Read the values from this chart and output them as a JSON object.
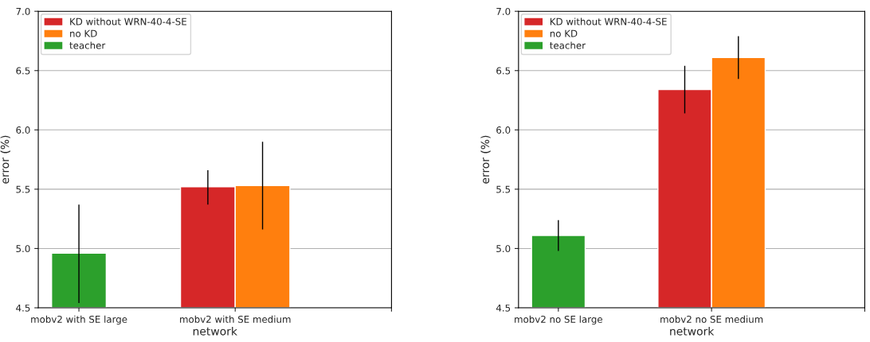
{
  "chart_data": [
    {
      "type": "bar",
      "xlabel": "network",
      "ylabel": "error (%)",
      "categories": [
        "mobv2 with SE large",
        "mobv2 with SE medium",
        null
      ],
      "ylim": [
        4.5,
        7.0
      ],
      "yticks": [
        {
          "value": 4.5,
          "label": "4.5"
        },
        {
          "value": 5.0,
          "label": "5.0"
        },
        {
          "value": 5.5,
          "label": "5.5"
        },
        {
          "value": 6.0,
          "label": "6.0"
        },
        {
          "value": 6.5,
          "label": "6.5"
        },
        {
          "value": 7.0,
          "label": "7.0"
        }
      ],
      "grid": "y",
      "legend": "top left",
      "series": [
        {
          "name": "KD without WRN-40-4-SE",
          "color": "#d62728",
          "values": [
            null,
            5.52,
            null
          ],
          "errors": [
            null,
            [
              5.37,
              5.66
            ],
            null
          ]
        },
        {
          "name": "no KD",
          "color": "#ff7f0e",
          "values": [
            null,
            5.53,
            null
          ],
          "errors": [
            null,
            [
              5.16,
              5.9
            ],
            null
          ]
        },
        {
          "name": "teacher",
          "color": "#2ca02c",
          "values": [
            4.96,
            null,
            null
          ],
          "errors": [
            [
              4.54,
              5.37
            ],
            null,
            null
          ]
        }
      ]
    },
    {
      "type": "bar",
      "xlabel": "network",
      "ylabel": "error (%)",
      "categories": [
        "mobv2 no SE large",
        "mobv2 no SE medium",
        null
      ],
      "ylim": [
        4.5,
        7.0
      ],
      "yticks": [
        {
          "value": 4.5,
          "label": "4.5"
        },
        {
          "value": 5.0,
          "label": "5.0"
        },
        {
          "value": 5.5,
          "label": "5.5"
        },
        {
          "value": 6.0,
          "label": "6.0"
        },
        {
          "value": 6.5,
          "label": "6.5"
        },
        {
          "value": 7.0,
          "label": "7.0"
        }
      ],
      "grid": "y",
      "legend": "top left",
      "series": [
        {
          "name": "KD without WRN-40-4-SE",
          "color": "#d62728",
          "values": [
            null,
            6.34,
            null
          ],
          "errors": [
            null,
            [
              6.14,
              6.54
            ],
            null
          ]
        },
        {
          "name": "no KD",
          "color": "#ff7f0e",
          "values": [
            null,
            6.61,
            null
          ],
          "errors": [
            null,
            [
              6.43,
              6.79
            ],
            null
          ]
        },
        {
          "name": "teacher",
          "color": "#2ca02c",
          "values": [
            5.11,
            null,
            null
          ],
          "errors": [
            [
              4.98,
              5.24
            ],
            null,
            null
          ]
        }
      ]
    }
  ]
}
